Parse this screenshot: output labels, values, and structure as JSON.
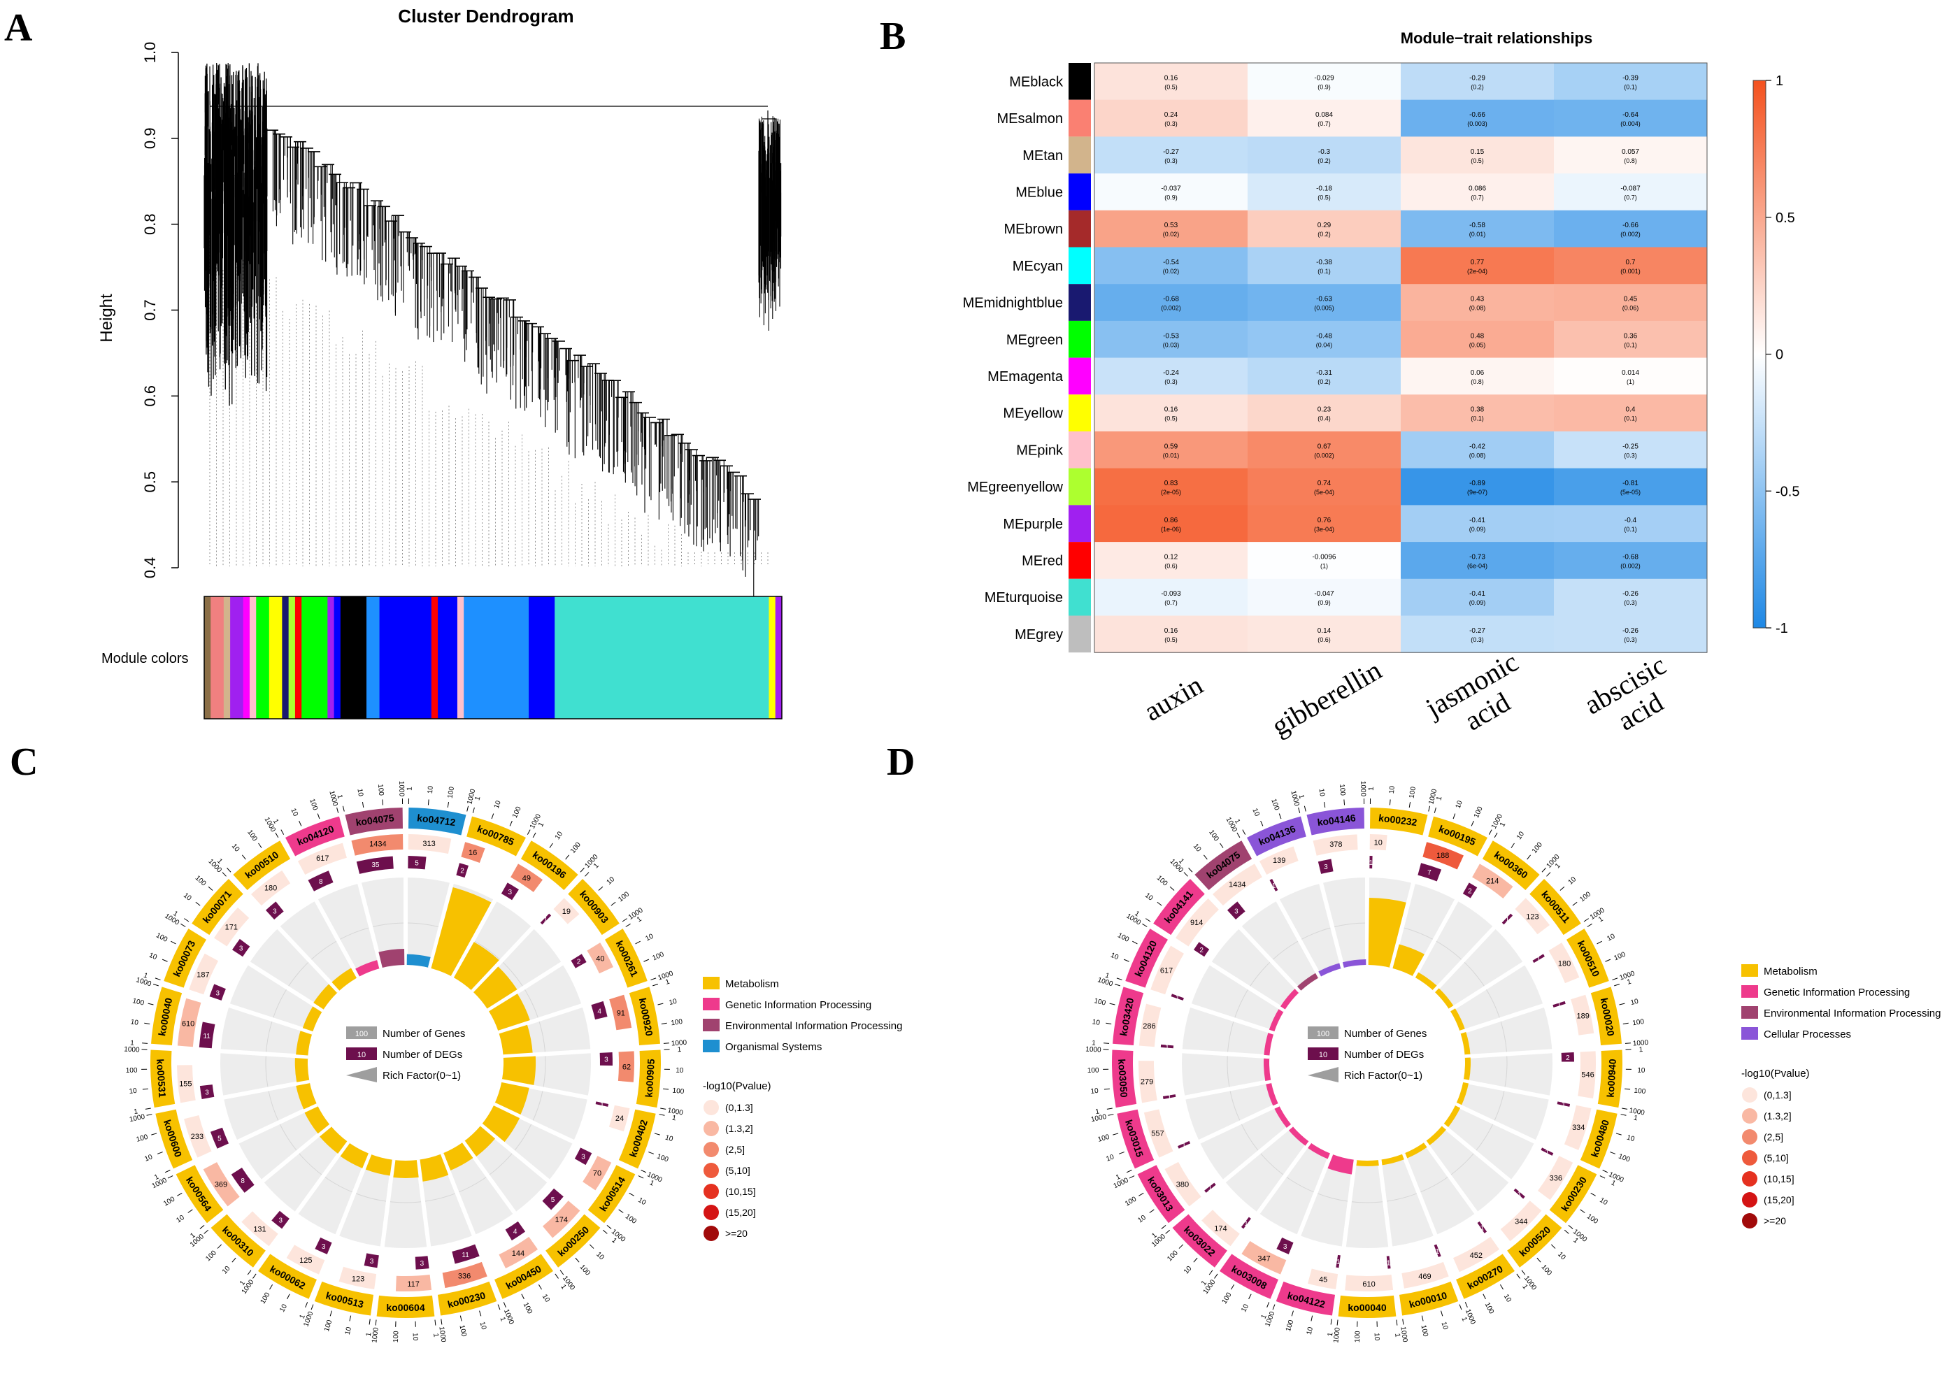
{
  "panels": {
    "a": {
      "letter": "A"
    },
    "b": {
      "letter": "B"
    },
    "c": {
      "letter": "C"
    },
    "d": {
      "letter": "D"
    }
  },
  "chart_data": [
    {
      "type": "dendrogram",
      "title": "Cluster Dendrogram",
      "ylabel": "Height",
      "ylim": [
        0.4,
        1.0
      ],
      "yticks": [
        "0.4",
        "0.5",
        "0.6",
        "0.7",
        "0.8",
        "0.9",
        "1.0"
      ],
      "colorbar_label": "Module colors",
      "module_color_bands": [
        {
          "color": "#8B6F47",
          "weight": 1
        },
        {
          "color": "#F08080",
          "weight": 2
        },
        {
          "color": "#D2B48C",
          "weight": 1
        },
        {
          "color": "#A020F0",
          "weight": 2
        },
        {
          "color": "#FF00FF",
          "weight": 1
        },
        {
          "color": "#FFC0CB",
          "weight": 1
        },
        {
          "color": "#00FF00",
          "weight": 2
        },
        {
          "color": "#FFFF00",
          "weight": 2
        },
        {
          "color": "#191970",
          "weight": 1
        },
        {
          "color": "#ADFF2F",
          "weight": 1
        },
        {
          "color": "#FF0000",
          "weight": 1
        },
        {
          "color": "#00FF00",
          "weight": 4
        },
        {
          "color": "#A020F0",
          "weight": 1
        },
        {
          "color": "#0000FF",
          "weight": 1
        },
        {
          "color": "#000000",
          "weight": 4
        },
        {
          "color": "#1E90FF",
          "weight": 2
        },
        {
          "color": "#0000FF",
          "weight": 8
        },
        {
          "color": "#FF0000",
          "weight": 1
        },
        {
          "color": "#0000FF",
          "weight": 3
        },
        {
          "color": "#FFC0CB",
          "weight": 1
        },
        {
          "color": "#1E90FF",
          "weight": 10
        },
        {
          "color": "#0000FF",
          "weight": 4
        },
        {
          "color": "#40E0D0",
          "weight": 33
        },
        {
          "color": "#FFFF00",
          "weight": 1
        },
        {
          "color": "#A020F0",
          "weight": 1
        }
      ]
    },
    {
      "type": "heatmap",
      "title": "Module−trait relationships",
      "columns": [
        "auxin",
        "gibberellin",
        "jasmonic acid",
        "abscisic acid"
      ],
      "column_labels": [
        [
          "auxin"
        ],
        [
          "gibberellin"
        ],
        [
          "jasmonic",
          "acid"
        ],
        [
          "abscisic",
          "acid"
        ]
      ],
      "rows": [
        {
          "name": "MEblack",
          "color": "#000000",
          "values": [
            "0.16",
            "-0.029",
            "-0.29",
            "-0.39"
          ],
          "pvalues": [
            "(0.5)",
            "(0.9)",
            "(0.2)",
            "(0.1)"
          ]
        },
        {
          "name": "MEsalmon",
          "color": "#FA8072",
          "values": [
            "0.24",
            "0.084",
            "-0.66",
            "-0.64"
          ],
          "pvalues": [
            "(0.3)",
            "(0.7)",
            "(0.003)",
            "(0.004)"
          ]
        },
        {
          "name": "MEtan",
          "color": "#D2B48C",
          "values": [
            "-0.27",
            "-0.3",
            "0.15",
            "0.057"
          ],
          "pvalues": [
            "(0.3)",
            "(0.2)",
            "(0.5)",
            "(0.8)"
          ]
        },
        {
          "name": "MEblue",
          "color": "#0000FF",
          "values": [
            "-0.037",
            "-0.18",
            "0.086",
            "-0.087"
          ],
          "pvalues": [
            "(0.9)",
            "(0.5)",
            "(0.7)",
            "(0.7)"
          ]
        },
        {
          "name": "MEbrown",
          "color": "#A52A2A",
          "values": [
            "0.53",
            "0.29",
            "-0.58",
            "-0.66"
          ],
          "pvalues": [
            "(0.02)",
            "(0.2)",
            "(0.01)",
            "(0.002)"
          ]
        },
        {
          "name": "MEcyan",
          "color": "#00FFFF",
          "values": [
            "-0.54",
            "-0.38",
            "0.77",
            "0.7"
          ],
          "pvalues": [
            "(0.02)",
            "(0.1)",
            "(2e-04)",
            "(0.001)"
          ]
        },
        {
          "name": "MEmidnightblue",
          "color": "#191970",
          "values": [
            "-0.68",
            "-0.63",
            "0.43",
            "0.45"
          ],
          "pvalues": [
            "(0.002)",
            "(0.005)",
            "(0.08)",
            "(0.06)"
          ]
        },
        {
          "name": "MEgreen",
          "color": "#00FF00",
          "values": [
            "-0.53",
            "-0.48",
            "0.48",
            "0.36"
          ],
          "pvalues": [
            "(0.03)",
            "(0.04)",
            "(0.05)",
            "(0.1)"
          ]
        },
        {
          "name": "MEmagenta",
          "color": "#FF00FF",
          "values": [
            "-0.24",
            "-0.31",
            "0.06",
            "0.014"
          ],
          "pvalues": [
            "(0.3)",
            "(0.2)",
            "(0.8)",
            "(1)"
          ]
        },
        {
          "name": "MEyellow",
          "color": "#FFFF00",
          "values": [
            "0.16",
            "0.23",
            "0.38",
            "0.4"
          ],
          "pvalues": [
            "(0.5)",
            "(0.4)",
            "(0.1)",
            "(0.1)"
          ]
        },
        {
          "name": "MEpink",
          "color": "#FFC0CB",
          "values": [
            "0.59",
            "0.67",
            "-0.42",
            "-0.25"
          ],
          "pvalues": [
            "(0.01)",
            "(0.002)",
            "(0.08)",
            "(0.3)"
          ]
        },
        {
          "name": "MEgreenyellow",
          "color": "#ADFF2F",
          "values": [
            "0.83",
            "0.74",
            "-0.89",
            "-0.81"
          ],
          "pvalues": [
            "(2e-05)",
            "(5e-04)",
            "(9e-07)",
            "(5e-05)"
          ]
        },
        {
          "name": "MEpurple",
          "color": "#A020F0",
          "values": [
            "0.86",
            "0.76",
            "-0.41",
            "-0.4"
          ],
          "pvalues": [
            "(1e-06)",
            "(3e-04)",
            "(0.09)",
            "(0.1)"
          ]
        },
        {
          "name": "MEred",
          "color": "#FF0000",
          "values": [
            "0.12",
            "-0.0096",
            "-0.73",
            "-0.68"
          ],
          "pvalues": [
            "(0.6)",
            "(1)",
            "(6e-04)",
            "(0.002)"
          ]
        },
        {
          "name": "MEturquoise",
          "color": "#40E0D0",
          "values": [
            "-0.093",
            "-0.047",
            "-0.41",
            "-0.26"
          ],
          "pvalues": [
            "(0.7)",
            "(0.9)",
            "(0.09)",
            "(0.3)"
          ]
        },
        {
          "name": "MEgrey",
          "color": "#BEBEBE",
          "values": [
            "0.16",
            "0.14",
            "-0.27",
            "-0.26"
          ],
          "pvalues": [
            "(0.5)",
            "(0.6)",
            "(0.3)",
            "(0.3)"
          ]
        }
      ],
      "color_scale": {
        "range": [
          -1,
          1
        ],
        "ticks": [
          "1",
          "0.5",
          "0",
          "-0.5",
          "-1"
        ],
        "low": "#1E88E5",
        "mid": "#FFFFFF",
        "high": "#F4511E"
      }
    },
    {
      "type": "circos",
      "sectors": [
        {
          "id": "ko04712",
          "category": "Organismal Systems",
          "genes": "313",
          "degs": "5",
          "rich": 0.016,
          "sig": 0
        },
        {
          "id": "ko00785",
          "category": "Metabolism",
          "genes": "16",
          "degs": "2",
          "rich": 0.125,
          "sig": 2
        },
        {
          "id": "ko00196",
          "category": "Metabolism",
          "genes": "49",
          "degs": "3",
          "rich": 0.061,
          "sig": 2
        },
        {
          "id": "ko00903",
          "category": "Metabolism",
          "genes": "19",
          "degs": "1",
          "rich": 0.053,
          "sig": 0
        },
        {
          "id": "ko00261",
          "category": "Metabolism",
          "genes": "40",
          "degs": "2",
          "rich": 0.05,
          "sig": 1
        },
        {
          "id": "ko00920",
          "category": "Metabolism",
          "genes": "91",
          "degs": "4",
          "rich": 0.044,
          "sig": 2
        },
        {
          "id": "ko00905",
          "category": "Metabolism",
          "genes": "62",
          "degs": "3",
          "rich": 0.048,
          "sig": 2
        },
        {
          "id": "ko00402",
          "category": "Metabolism",
          "genes": "24",
          "degs": "1",
          "rich": 0.042,
          "sig": 0
        },
        {
          "id": "ko00514",
          "category": "Metabolism",
          "genes": "70",
          "degs": "3",
          "rich": 0.043,
          "sig": 1
        },
        {
          "id": "ko00250",
          "category": "Metabolism",
          "genes": "174",
          "degs": "5",
          "rich": 0.029,
          "sig": 1
        },
        {
          "id": "ko00450",
          "category": "Metabolism",
          "genes": "144",
          "degs": "4",
          "rich": 0.028,
          "sig": 1
        },
        {
          "id": "ko00230",
          "category": "Metabolism",
          "genes": "336",
          "degs": "11",
          "rich": 0.033,
          "sig": 2
        },
        {
          "id": "ko00604",
          "category": "Metabolism",
          "genes": "117",
          "degs": "3",
          "rich": 0.026,
          "sig": 1
        },
        {
          "id": "ko00513",
          "category": "Metabolism",
          "genes": "123",
          "degs": "3",
          "rich": 0.024,
          "sig": 0
        },
        {
          "id": "ko00062",
          "category": "Metabolism",
          "genes": "125",
          "degs": "3",
          "rich": 0.024,
          "sig": 0
        },
        {
          "id": "ko00310",
          "category": "Metabolism",
          "genes": "131",
          "degs": "3",
          "rich": 0.023,
          "sig": 0
        },
        {
          "id": "ko00564",
          "category": "Metabolism",
          "genes": "369",
          "degs": "8",
          "rich": 0.022,
          "sig": 1
        },
        {
          "id": "ko00600",
          "category": "Metabolism",
          "genes": "233",
          "degs": "5",
          "rich": 0.021,
          "sig": 0
        },
        {
          "id": "ko00531",
          "category": "Metabolism",
          "genes": "155",
          "degs": "3",
          "rich": 0.019,
          "sig": 0
        },
        {
          "id": "ko00040",
          "category": "Metabolism",
          "genes": "610",
          "degs": "11",
          "rich": 0.018,
          "sig": 1
        },
        {
          "id": "ko00073",
          "category": "Metabolism",
          "genes": "187",
          "degs": "3",
          "rich": 0.016,
          "sig": 0
        },
        {
          "id": "ko00071",
          "category": "Metabolism",
          "genes": "171",
          "degs": "3",
          "rich": 0.018,
          "sig": 0
        },
        {
          "id": "ko00510",
          "category": "Metabolism",
          "genes": "180",
          "degs": "3",
          "rich": 0.017,
          "sig": 0
        },
        {
          "id": "ko04120",
          "category": "Genetic Information Processing",
          "genes": "617",
          "degs": "8",
          "rich": 0.013,
          "sig": 0
        },
        {
          "id": "ko04075",
          "category": "Environmental Information Processing",
          "genes": "1434",
          "degs": "35",
          "rich": 0.024,
          "sig": 2
        }
      ],
      "legend": [
        "Metabolism",
        "Genetic Information Processing",
        "Environmental Information Processing",
        "Organismal Systems"
      ],
      "legend_colors": [
        "#F7C100",
        "#EE3A8C",
        "#A0426F",
        "#1E8FD0"
      ],
      "scale_labels": [
        "1",
        "10",
        "100",
        "1000"
      ],
      "inner_legend": [
        {
          "label": "Number of Genes",
          "box": "100"
        },
        {
          "label": "Number of DEGs",
          "box": "10"
        },
        {
          "label": "Rich Factor(0~1)",
          "box": ""
        }
      ],
      "pvalue_title": "-log10(Pvalue)",
      "pvalue_bins": [
        "(0,1.3]",
        "(1.3,2]",
        "(2,5]",
        "(5,10]",
        "(10,15]",
        "(15,20]",
        ">=20"
      ],
      "pvalue_colors": [
        "#FDE5DC",
        "#F9B8A3",
        "#F28A6E",
        "#EE5A3C",
        "#E53120",
        "#D41414",
        "#A10A0A"
      ]
    },
    {
      "type": "circos",
      "sectors": [
        {
          "id": "ko00232",
          "category": "Metabolism",
          "genes": "10",
          "degs": "1",
          "rich": 0.1,
          "sig": 0
        },
        {
          "id": "ko00195",
          "category": "Metabolism",
          "genes": "188",
          "degs": "7",
          "rich": 0.037,
          "sig": 3
        },
        {
          "id": "ko00360",
          "category": "Metabolism",
          "genes": "214",
          "degs": "2",
          "rich": 0.009,
          "sig": 1
        },
        {
          "id": "ko00511",
          "category": "Metabolism",
          "genes": "123",
          "degs": "1",
          "rich": 0.008,
          "sig": 0
        },
        {
          "id": "ko00510",
          "category": "Metabolism",
          "genes": "180",
          "degs": "1",
          "rich": 0.006,
          "sig": 0
        },
        {
          "id": "ko00020",
          "category": "Metabolism",
          "genes": "189",
          "degs": "1",
          "rich": 0.005,
          "sig": 0
        },
        {
          "id": "ko00940",
          "category": "Metabolism",
          "genes": "546",
          "degs": "2",
          "rich": 0.004,
          "sig": 0
        },
        {
          "id": "ko00480",
          "category": "Metabolism",
          "genes": "334",
          "degs": "1",
          "rich": 0.003,
          "sig": 0
        },
        {
          "id": "ko00230",
          "category": "Metabolism",
          "genes": "336",
          "degs": "1",
          "rich": 0.003,
          "sig": 0
        },
        {
          "id": "ko00520",
          "category": "Metabolism",
          "genes": "344",
          "degs": "1",
          "rich": 0.003,
          "sig": 0
        },
        {
          "id": "ko00270",
          "category": "Metabolism",
          "genes": "452",
          "degs": "1",
          "rich": 0.002,
          "sig": 0
        },
        {
          "id": "ko00010",
          "category": "Metabolism",
          "genes": "469",
          "degs": "1",
          "rich": 0.002,
          "sig": 0
        },
        {
          "id": "ko00040",
          "category": "Metabolism",
          "genes": "610",
          "degs": "1",
          "rich": 0.002,
          "sig": 0
        },
        {
          "id": "ko04122",
          "category": "Genetic Information Processing",
          "genes": "45",
          "degs": "1",
          "rich": 0.022,
          "sig": 0
        },
        {
          "id": "ko03008",
          "category": "Genetic Information Processing",
          "genes": "347",
          "degs": "3",
          "rich": 0.009,
          "sig": 1
        },
        {
          "id": "ko03022",
          "category": "Genetic Information Processing",
          "genes": "174",
          "degs": "1",
          "rich": 0.006,
          "sig": 0
        },
        {
          "id": "ko03013",
          "category": "Genetic Information Processing",
          "genes": "380",
          "degs": "1",
          "rich": 0.003,
          "sig": 0
        },
        {
          "id": "ko03015",
          "category": "Genetic Information Processing",
          "genes": "557",
          "degs": "1",
          "rich": 0.002,
          "sig": 0
        },
        {
          "id": "ko03050",
          "category": "Genetic Information Processing",
          "genes": "279",
          "degs": "1",
          "rich": 0.004,
          "sig": 0
        },
        {
          "id": "ko03420",
          "category": "Genetic Information Processing",
          "genes": "286",
          "degs": "1",
          "rich": 0.003,
          "sig": 0
        },
        {
          "id": "ko04120",
          "category": "Genetic Information Processing",
          "genes": "617",
          "degs": "1",
          "rich": 0.002,
          "sig": 0
        },
        {
          "id": "ko04141",
          "category": "Genetic Information Processing",
          "genes": "914",
          "degs": "2",
          "rich": 0.002,
          "sig": 0
        },
        {
          "id": "ko04075",
          "category": "Environmental Information Processing",
          "genes": "1434",
          "degs": "3",
          "rich": 0.002,
          "sig": 0
        },
        {
          "id": "ko04136",
          "category": "Cellular Processes",
          "genes": "139",
          "degs": "1",
          "rich": 0.007,
          "sig": 0
        },
        {
          "id": "ko04146",
          "category": "Cellular Processes",
          "genes": "378",
          "degs": "3",
          "rich": 0.008,
          "sig": 0
        }
      ],
      "legend": [
        "Metabolism",
        "Genetic Information Processing",
        "Environmental Information Processing",
        "Cellular Processes"
      ],
      "legend_colors": [
        "#F7C100",
        "#EE3A8C",
        "#A0426F",
        "#8A55D8"
      ],
      "scale_labels": [
        "1",
        "10",
        "100",
        "1000"
      ],
      "inner_legend": [
        {
          "label": "Number of Genes",
          "box": "100"
        },
        {
          "label": "Number of DEGs",
          "box": "10"
        },
        {
          "label": "Rich Factor(0~1)",
          "box": ""
        }
      ],
      "pvalue_title": "-log10(Pvalue)",
      "pvalue_bins": [
        "(0,1.3]",
        "(1.3,2]",
        "(2,5]",
        "(5,10]",
        "(10,15]",
        "(15,20]",
        ">=20"
      ],
      "pvalue_colors": [
        "#FDE5DC",
        "#F9B8A3",
        "#F28A6E",
        "#EE5A3C",
        "#E53120",
        "#D41414",
        "#A10A0A"
      ]
    }
  ]
}
